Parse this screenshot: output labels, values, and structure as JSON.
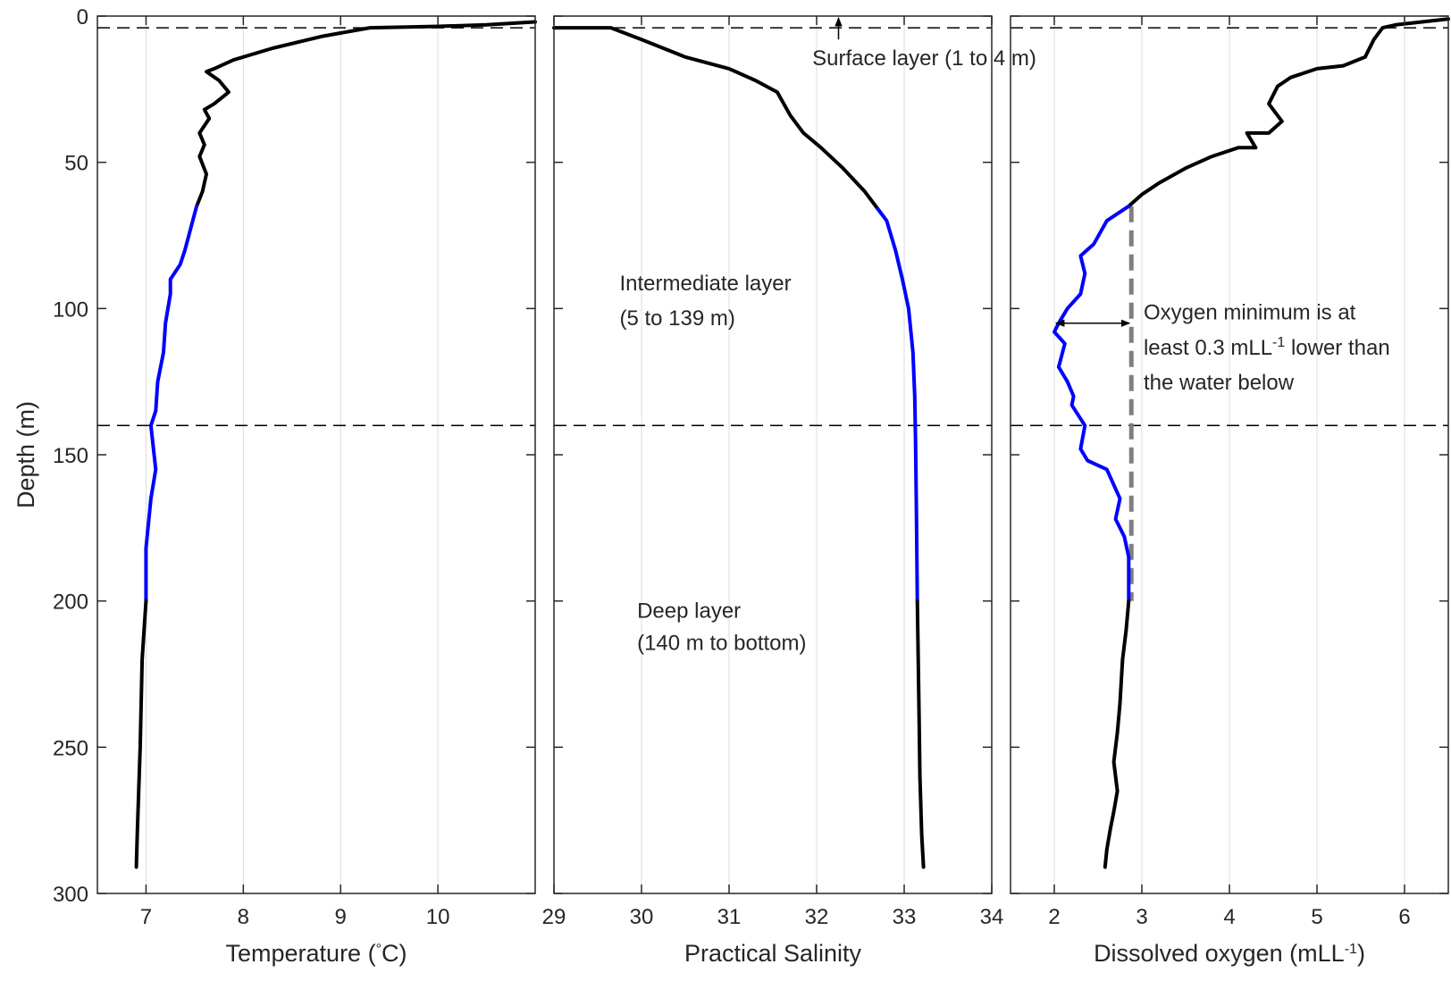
{
  "chart_data": [
    {
      "type": "line",
      "xlabel": "Temperature (°C)",
      "xlabel_parts": {
        "prefix": "Temperature (",
        "sup": "°",
        "suffix": "C)"
      },
      "ylabel": "Depth (m)",
      "xlim": [
        6.5,
        11
      ],
      "ylim": [
        0,
        300
      ],
      "y_reversed": true,
      "xticks": [
        7,
        8,
        9,
        10
      ],
      "yticks": [
        0,
        50,
        100,
        150,
        200,
        250,
        300
      ],
      "grid": "vertical",
      "hlines": [
        4,
        140
      ],
      "series": [
        {
          "color": "#000000",
          "x": [
            11.0,
            10.5,
            10.0,
            9.3,
            8.8,
            8.3,
            7.9,
            7.7,
            7.62,
            7.75,
            7.85,
            7.7,
            7.6,
            7.65,
            7.55,
            7.6,
            7.55,
            7.62,
            7.58,
            7.52
          ],
          "y": [
            2,
            3,
            3.5,
            4,
            7,
            11,
            15,
            18,
            19,
            22,
            26,
            30,
            32,
            35,
            40,
            44,
            48,
            54,
            60,
            65
          ]
        },
        {
          "color": "#0000ff",
          "x": [
            7.52,
            7.48,
            7.4,
            7.35,
            7.25,
            7.25,
            7.2,
            7.18,
            7.12,
            7.1,
            7.05,
            7.1,
            7.05,
            7.0,
            7.0
          ],
          "y": [
            65,
            70,
            80,
            85,
            90,
            95,
            105,
            115,
            125,
            135,
            140,
            155,
            165,
            182,
            200
          ]
        },
        {
          "color": "#000000",
          "x": [
            7.0,
            6.96,
            6.95,
            6.94,
            6.93,
            6.92,
            6.91,
            6.9
          ],
          "y": [
            200,
            220,
            235,
            250,
            260,
            270,
            280,
            291
          ]
        }
      ]
    },
    {
      "type": "line",
      "xlabel": "Practical Salinity",
      "xlim": [
        29,
        34
      ],
      "ylim": [
        0,
        300
      ],
      "y_reversed": true,
      "xticks": [
        29,
        30,
        31,
        32,
        33,
        34
      ],
      "grid": "vertical",
      "hlines": [
        4,
        140
      ],
      "series": [
        {
          "color": "#000000",
          "x": [
            29.0,
            29.65,
            30.0,
            30.5,
            31.0,
            31.3,
            31.55,
            31.7,
            31.85,
            32.05,
            32.3,
            32.55,
            32.7
          ],
          "y": [
            4,
            4,
            8,
            14,
            18,
            22,
            26,
            34,
            40,
            45,
            52,
            60,
            66
          ]
        },
        {
          "color": "#0000ff",
          "x": [
            32.7,
            32.8,
            32.9,
            32.98,
            33.05,
            33.1,
            33.12,
            33.13,
            33.14,
            33.15
          ],
          "y": [
            66,
            70,
            80,
            90,
            100,
            115,
            130,
            145,
            170,
            200
          ]
        },
        {
          "color": "#000000",
          "x": [
            33.15,
            33.16,
            33.17,
            33.18,
            33.2,
            33.22
          ],
          "y": [
            200,
            220,
            240,
            260,
            280,
            291
          ]
        }
      ],
      "annotations": [
        {
          "text": "Surface layer (1 to 4 m)",
          "x": 31.95,
          "y": 14,
          "arrow_from": [
            32.25,
            8
          ],
          "arrow_to": [
            32.25,
            0
          ]
        },
        {
          "text": "Intermediate layer",
          "x": 29.75,
          "y": 91
        },
        {
          "text": "(5 to 139 m)",
          "x": 29.75,
          "y": 103
        },
        {
          "text": "Deep layer",
          "x": 29.95,
          "y": 203
        },
        {
          "text": "(140 m to bottom)",
          "x": 29.95,
          "y": 214
        }
      ]
    },
    {
      "type": "line",
      "xlabel": "Dissolved oxygen (mLL-1)",
      "xlabel_parts": {
        "prefix": "Dissolved oxygen (mLL",
        "sup": "-1",
        "suffix": ")"
      },
      "xlim": [
        1.5,
        6.5
      ],
      "ylim": [
        0,
        300
      ],
      "y_reversed": true,
      "xticks": [
        2,
        3,
        4,
        5,
        6
      ],
      "grid": "vertical",
      "hlines": [
        4,
        140
      ],
      "series": [
        {
          "color": "#000000",
          "x": [
            6.5,
            6.2,
            5.9,
            5.75,
            5.65,
            5.55,
            5.3,
            5.0,
            4.7,
            4.55,
            4.45,
            4.6,
            4.45,
            4.2,
            4.3,
            4.1,
            3.8,
            3.5,
            3.2,
            3.0,
            2.85
          ],
          "y": [
            1,
            2,
            3,
            4,
            8,
            14,
            17,
            18,
            21,
            24,
            30,
            36,
            40,
            40,
            45,
            45,
            48,
            52,
            57,
            61,
            65
          ]
        },
        {
          "color": "#0000ff",
          "x": [
            2.85,
            2.6,
            2.45,
            2.3,
            2.35,
            2.3,
            2.15,
            2.05,
            2.0,
            2.12,
            2.05,
            2.15,
            2.22,
            2.2,
            2.35,
            2.3,
            2.38,
            2.6,
            2.75,
            2.7,
            2.8,
            2.85,
            2.85
          ],
          "y": [
            65,
            70,
            78,
            82,
            88,
            95,
            100,
            105,
            108,
            112,
            120,
            125,
            130,
            133,
            140,
            148,
            152,
            155,
            165,
            172,
            178,
            185,
            200
          ]
        },
        {
          "color": "#000000",
          "x": [
            2.85,
            2.82,
            2.78,
            2.75,
            2.72,
            2.7,
            2.68,
            2.72,
            2.68,
            2.64,
            2.6,
            2.58
          ],
          "y": [
            200,
            210,
            220,
            235,
            245,
            250,
            255,
            265,
            272,
            278,
            285,
            291
          ]
        }
      ],
      "reference_line": {
        "x": 2.88,
        "y": [
          65,
          200
        ],
        "color": "#7f7f7f",
        "style": "dashed"
      },
      "annotations": [
        {
          "text": "Oxygen minimum is at",
          "x": 3.02,
          "y": 101
        },
        {
          "text": "least 0.3 mLL-1 lower than",
          "parts": {
            "prefix": "least 0.3 mLL",
            "sup": "-1",
            "suffix": " lower than"
          },
          "x": 3.02,
          "y": 113
        },
        {
          "text": "the water below",
          "x": 3.02,
          "y": 125
        }
      ],
      "double_arrow": {
        "x": [
          2.0,
          2.88
        ],
        "y": 105
      }
    }
  ]
}
